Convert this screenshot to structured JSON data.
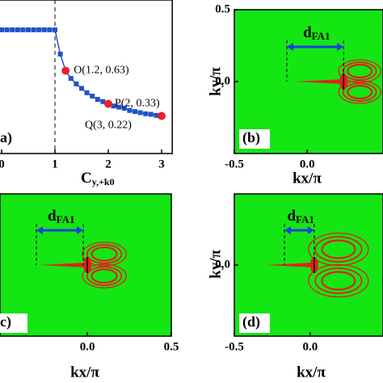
{
  "panel_a": {
    "type": "line",
    "label": "a)",
    "x_label": "C",
    "x_label_sub": "y,+k0",
    "x": [
      0,
      0.1,
      0.2,
      0.3,
      0.4,
      0.5,
      0.6,
      0.7,
      0.8,
      0.9,
      1.0,
      1.1,
      1.2,
      1.3,
      1.4,
      1.5,
      1.6,
      1.7,
      1.8,
      1.9,
      2.0,
      2.1,
      2.2,
      2.3,
      2.4,
      2.5,
      2.6,
      2.7,
      2.8,
      2.9,
      3.0
    ],
    "values": [
      1,
      1,
      1,
      1,
      1,
      1,
      1,
      1,
      1,
      1,
      1,
      0.78,
      0.63,
      0.56,
      0.51,
      0.47,
      0.43,
      0.4,
      0.37,
      0.35,
      0.33,
      0.31,
      0.3,
      0.29,
      0.27,
      0.26,
      0.25,
      0.24,
      0.235,
      0.225,
      0.22
    ],
    "color": "#2153c8",
    "xlim": [
      -0.05,
      3.2
    ],
    "ylim": [
      -0.12,
      1.27
    ],
    "xticks": [
      0,
      1,
      2,
      3
    ],
    "dashed_x": 1,
    "points": [
      {
        "label": "O(1.2, 0.63)",
        "x": 1.2,
        "y": 0.63
      },
      {
        "label": "P(2, 0.33)",
        "x": 2,
        "y": 0.33
      },
      {
        "label": "Q(3, 0.22)",
        "x": 3,
        "y": 0.22
      }
    ],
    "point_color": "#e8202a"
  },
  "panels": [
    {
      "label": "(b)",
      "x_label": "kx/π",
      "y_label": "ky/π",
      "annotation": "d",
      "annotation_sub": "FA1",
      "xlim": [
        -0.5,
        0.52
      ],
      "ylim": [
        -0.5,
        0.5
      ],
      "xticks": [
        -0.5,
        {
          "value": 0,
          "label": "0.0"
        }
      ],
      "yticks": [
        {
          "value": 0,
          "label": "0.0"
        },
        0.5
      ]
    },
    {
      "label": "c)",
      "x_label": "kx/π",
      "annotation": "d",
      "annotation_sub": "FA1",
      "xlim": [
        -0.52,
        0.5
      ],
      "ylim": [
        -0.5,
        0.5
      ],
      "xticks": [
        {
          "value": 0,
          "label": "0.0"
        },
        0.5
      ],
      "yticks": []
    },
    {
      "label": "(d)",
      "x_label": "kx/π",
      "y_label": "ky/π",
      "annotation": "d",
      "annotation_sub": "FA1",
      "xlim": [
        -0.5,
        0.48
      ],
      "ylim": [
        -0.5,
        0.5
      ],
      "xticks": [
        -0.5,
        {
          "value": 0,
          "label": "0.0"
        }
      ],
      "yticks": [
        {
          "value": 0,
          "label": "0.0"
        }
      ]
    }
  ]
}
